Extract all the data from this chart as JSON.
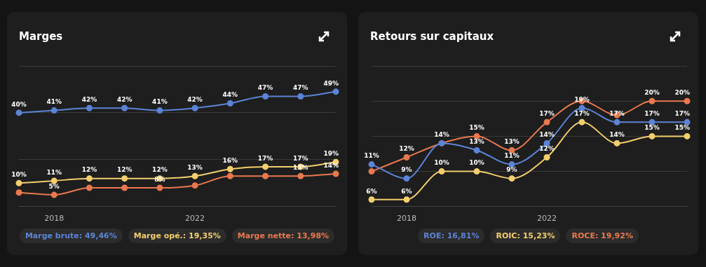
{
  "chart_data": [
    {
      "type": "line",
      "title": "Marges",
      "categories": [
        null,
        "2018",
        null,
        null,
        null,
        "2022",
        null,
        null,
        null,
        null
      ],
      "ylim": [
        0,
        60
      ],
      "yticks": [
        {
          "value": 0,
          "label": null
        },
        {
          "value": 20,
          "label": null
        },
        {
          "value": 40,
          "label": null
        },
        {
          "value": 60,
          "label": null
        }
      ],
      "tick_labels": "x",
      "grid": "y",
      "legend": "bottom",
      "marker": "circle",
      "series": [
        {
          "name": "Marge brute: 49,46%",
          "color": "#5b84d8",
          "values": [
            40,
            41,
            42,
            42,
            41,
            42,
            44,
            47,
            47,
            49
          ],
          "value_labels": [
            "40%",
            "41%",
            "42%",
            "42%",
            "41%",
            "42%",
            "44%",
            "47%",
            "47%",
            "49%"
          ]
        },
        {
          "name": "Marge opé.: 19,35%",
          "color": "#f3ce6c",
          "values": [
            10,
            11,
            12,
            12,
            12,
            13,
            16,
            17,
            17,
            19
          ],
          "value_labels": [
            "10%",
            "11%",
            "12%",
            "12%",
            "12%",
            "13%",
            "16%",
            "17%",
            "17%",
            "19%"
          ]
        },
        {
          "name": "Marge nette: 13,98%",
          "color": "#e9784f",
          "values": [
            6,
            5,
            8,
            8,
            8,
            9,
            13,
            13,
            13,
            14
          ],
          "value_labels": [
            null,
            "5%",
            null,
            null,
            "8%",
            null,
            null,
            null,
            "13%",
            "14%"
          ]
        }
      ]
    },
    {
      "type": "line",
      "title": "Retours sur capitaux",
      "categories": [
        null,
        "2018",
        null,
        null,
        null,
        "2022",
        null,
        null,
        null,
        null
      ],
      "ylim": [
        5,
        25
      ],
      "yticks": [
        {
          "value": 5,
          "label": null
        },
        {
          "value": 10,
          "label": null
        },
        {
          "value": 15,
          "label": null
        },
        {
          "value": 20,
          "label": null
        },
        {
          "value": 25,
          "label": null
        }
      ],
      "tick_labels": "x",
      "grid": "y",
      "legend": "bottom",
      "marker": "circle",
      "series": [
        {
          "name": "ROE: 16,81%",
          "color": "#5b84d8",
          "values": [
            11,
            9,
            14,
            13,
            11,
            14,
            19,
            17,
            17,
            17
          ],
          "value_labels": [
            "11%",
            "9%",
            null,
            "13%",
            "11%",
            "14%",
            "19%",
            "17%",
            "17%",
            "17%"
          ]
        },
        {
          "name": "ROIC: 15,23%",
          "color": "#f3ce6c",
          "values": [
            6,
            6,
            10,
            10,
            9,
            12,
            17,
            14,
            15,
            15
          ],
          "value_labels": [
            "6%",
            "6%",
            "10%",
            "10%",
            "9%",
            "12%",
            "17%",
            "14%",
            "15%",
            "15%"
          ]
        },
        {
          "name": "ROCE: 19,92%",
          "color": "#e9784f",
          "values": [
            10,
            12,
            14,
            15,
            13,
            17,
            20,
            18,
            20,
            20
          ],
          "value_labels": [
            null,
            "12%",
            "14%",
            "15%",
            "13%",
            "17%",
            null,
            null,
            "20%",
            "20%"
          ]
        }
      ]
    }
  ]
}
